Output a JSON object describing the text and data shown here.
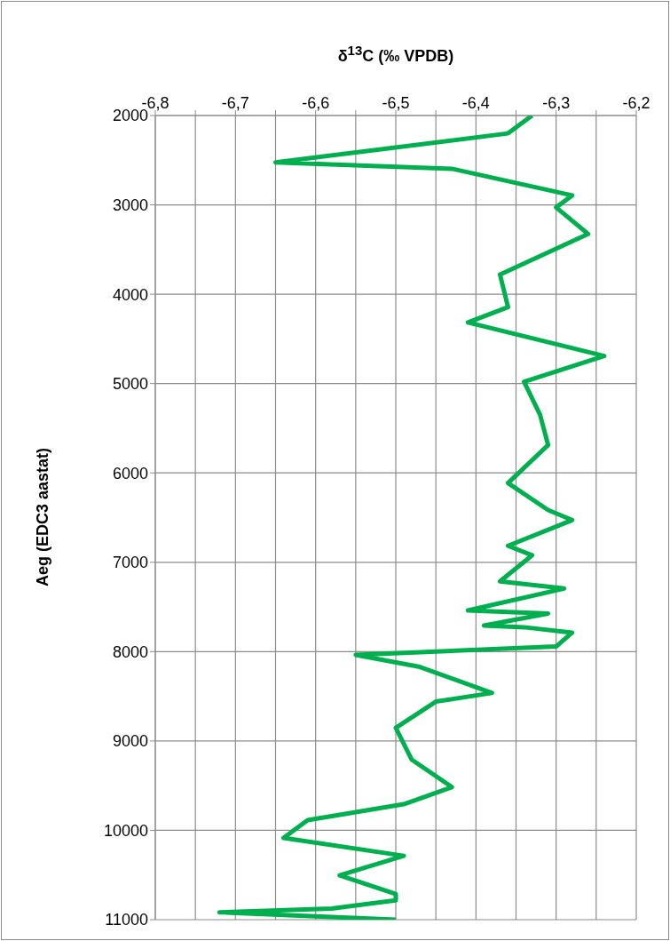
{
  "chart_data": {
    "type": "line",
    "xlabel": "δ$^{13}$C (‰ VPDB)",
    "ylabel": "Aeg (EDC3 aastat)",
    "series": [
      {
        "color": "#00b04f",
        "x": [
          -6.33,
          -6.36,
          -6.65,
          -6.43,
          -6.28,
          -6.3,
          -6.26,
          -6.37,
          -6.36,
          -6.41,
          -6.24,
          -6.34,
          -6.32,
          -6.31,
          -6.36,
          -6.31,
          -6.28,
          -6.36,
          -6.33,
          -6.37,
          -6.29,
          -6.41,
          -6.31,
          -6.39,
          -6.34,
          -6.28,
          -6.3,
          -6.55,
          -6.47,
          -6.38,
          -6.45,
          -6.5,
          -6.48,
          -6.43,
          -6.49,
          -6.61,
          -6.64,
          -6.49,
          -6.57,
          -6.5,
          -6.5,
          -6.58,
          -6.72,
          -6.5
        ],
        "values": [
          2000,
          2200,
          2525,
          2596,
          2894,
          3028,
          3326,
          3780,
          4145,
          4316,
          4691,
          4980,
          5351,
          5688,
          6113,
          6415,
          6528,
          6816,
          6922,
          7213,
          7294,
          7539,
          7574,
          7709,
          7727,
          7787,
          7943,
          8036,
          8171,
          8463,
          8559,
          8854,
          9210,
          9516,
          9708,
          9886,
          10085,
          10285,
          10505,
          10712,
          10783,
          10875,
          10918,
          11000
        ]
      }
    ],
    "xlim": [
      -6.8,
      -6.2
    ],
    "xticks": [
      {
        "value": -6.8,
        "label": "-6,8"
      },
      {
        "value": -6.75,
        "label": null
      },
      {
        "value": -6.7,
        "label": "-6,7"
      },
      {
        "value": -6.65,
        "label": null
      },
      {
        "value": -6.6,
        "label": "-6,6"
      },
      {
        "value": -6.55,
        "label": null
      },
      {
        "value": -6.5,
        "label": "-6,5"
      },
      {
        "value": -6.45,
        "label": null
      },
      {
        "value": -6.4,
        "label": "-6,4"
      },
      {
        "value": -6.35,
        "label": null
      },
      {
        "value": -6.3,
        "label": "-6,3"
      },
      {
        "value": -6.25,
        "label": null
      },
      {
        "value": -6.2,
        "label": "-6,2"
      }
    ],
    "ylim": [
      11000,
      2000
    ],
    "yticks": [
      2000,
      3000,
      4000,
      5000,
      6000,
      7000,
      8000,
      9000,
      10000,
      11000
    ],
    "grid": true,
    "marker": "none",
    "line_style": "solid"
  }
}
